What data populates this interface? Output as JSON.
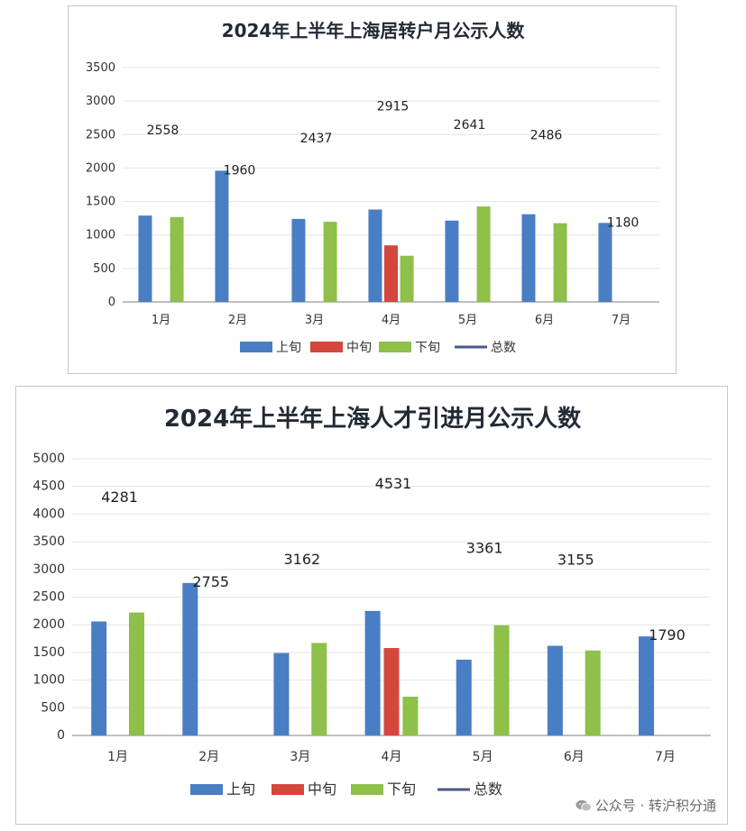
{
  "colors": {
    "shang": "#4a7ec4",
    "zhong": "#d4473c",
    "xia": "#8ec04a",
    "total": "#4b5a88",
    "axis": "#9a9a9a",
    "grid": "#e4e4e4",
    "text": "#333333",
    "title": "#222a35"
  },
  "legend_labels": {
    "shang": "上旬",
    "zhong": "中旬",
    "xia": "下旬",
    "total": "总数"
  },
  "watermark": {
    "text": "公众号 · 转沪积分通",
    "icon": "wechat-icon"
  },
  "chart_data": [
    {
      "type": "bar",
      "title": "2024年上半年上海居转户月公示人数",
      "xlabel": "",
      "ylabel": "",
      "categories": [
        "1月",
        "2月",
        "3月",
        "4月",
        "5月",
        "6月",
        "7月"
      ],
      "ylim": [
        0,
        3500
      ],
      "yticks": [
        0,
        500,
        1000,
        1500,
        2000,
        2500,
        3000,
        3500
      ],
      "grid": true,
      "legend_position": "bottom",
      "series": [
        {
          "name": "上旬",
          "values": [
            1290,
            1960,
            1240,
            1380,
            1215,
            1310,
            1180
          ]
        },
        {
          "name": "中旬",
          "values": [
            null,
            null,
            null,
            845,
            null,
            null,
            null
          ]
        },
        {
          "name": "下旬",
          "values": [
            1268,
            null,
            1197,
            690,
            1426,
            1176,
            null
          ]
        }
      ],
      "totals_label": "总数",
      "totals": [
        2558,
        1960,
        2437,
        2915,
        2641,
        2486,
        1180
      ]
    },
    {
      "type": "bar",
      "title": "2024年上半年上海人才引进月公示人数",
      "xlabel": "",
      "ylabel": "",
      "categories": [
        "1月",
        "2月",
        "3月",
        "4月",
        "5月",
        "6月",
        "7月"
      ],
      "ylim": [
        0,
        5000
      ],
      "yticks": [
        0,
        500,
        1000,
        1500,
        2000,
        2500,
        3000,
        3500,
        4000,
        4500,
        5000
      ],
      "grid": true,
      "legend_position": "bottom",
      "series": [
        {
          "name": "上旬",
          "values": [
            2060,
            2755,
            1490,
            2250,
            1370,
            1620,
            1790
          ]
        },
        {
          "name": "中旬",
          "values": [
            null,
            null,
            null,
            1580,
            null,
            null,
            null
          ]
        },
        {
          "name": "下旬",
          "values": [
            2221,
            null,
            1672,
            701,
            1991,
            1535,
            null
          ]
        }
      ],
      "totals_label": "总数",
      "totals": [
        4281,
        2755,
        3162,
        4531,
        3361,
        3155,
        1790
      ]
    }
  ]
}
